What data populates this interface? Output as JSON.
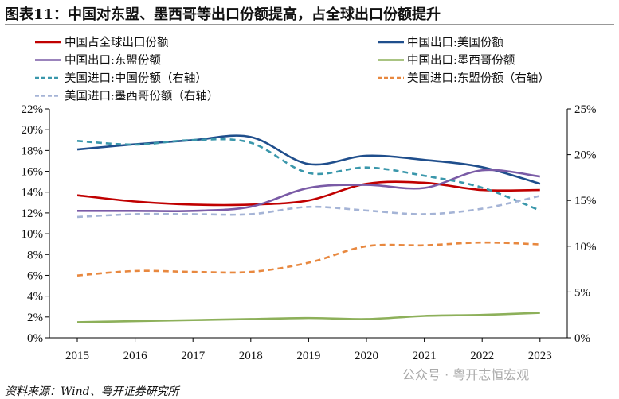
{
  "title": "图表11：中国对东盟、墨西哥等出口份额提高，占全球出口份额提升",
  "source": "资料来源：Wind、粤开证券研究所",
  "watermark": "公众号 · 粤开志恒宏观",
  "chart_data": {
    "type": "line",
    "x": [
      "2015",
      "2016",
      "2017",
      "2018",
      "2019",
      "2020",
      "2021",
      "2022",
      "2023"
    ],
    "left_axis": {
      "ylim": [
        0,
        22
      ],
      "ticks": [
        "0%",
        "2%",
        "4%",
        "6%",
        "8%",
        "10%",
        "12%",
        "14%",
        "16%",
        "18%",
        "20%",
        "22%"
      ]
    },
    "right_axis": {
      "ylim": [
        0,
        25
      ],
      "ticks": [
        "0%",
        "5%",
        "10%",
        "15%",
        "20%",
        "25%"
      ]
    },
    "legend_position": "top",
    "grid": false,
    "series": [
      {
        "name": "中国占全球出口份额",
        "axis": "left",
        "color": "#c00000",
        "dash": false,
        "values": [
          13.7,
          13.1,
          12.8,
          12.8,
          13.2,
          14.8,
          14.9,
          14.2,
          14.2
        ]
      },
      {
        "name": "中国出口:美国份额",
        "axis": "left",
        "color": "#1f4e8c",
        "dash": false,
        "values": [
          18.1,
          18.6,
          19.0,
          19.3,
          16.7,
          17.5,
          17.1,
          16.4,
          14.8
        ]
      },
      {
        "name": "中国出口:东盟份额",
        "axis": "left",
        "color": "#7a5ba6",
        "dash": false,
        "values": [
          12.2,
          12.2,
          12.2,
          12.6,
          14.4,
          14.7,
          14.4,
          16.1,
          15.5
        ]
      },
      {
        "name": "中国出口:墨西哥份额",
        "axis": "left",
        "color": "#8db05a",
        "dash": false,
        "values": [
          1.5,
          1.6,
          1.7,
          1.8,
          1.9,
          1.8,
          2.1,
          2.2,
          2.4
        ]
      },
      {
        "name": "美国进口:中国份额（右轴）",
        "axis": "right",
        "color": "#3a97ab",
        "dash": true,
        "values": [
          21.5,
          21.1,
          21.6,
          21.3,
          18.0,
          18.6,
          17.7,
          16.4,
          13.9
        ]
      },
      {
        "name": "美国进口:东盟份额（右轴）",
        "axis": "right",
        "color": "#e8883f",
        "dash": true,
        "values": [
          6.8,
          7.3,
          7.2,
          7.2,
          8.2,
          10.0,
          10.1,
          10.4,
          10.2
        ]
      },
      {
        "name": "美国进口:墨西哥份额（右轴）",
        "axis": "right",
        "color": "#a5b4d6",
        "dash": true,
        "values": [
          13.2,
          13.5,
          13.5,
          13.5,
          14.3,
          13.9,
          13.5,
          14.1,
          15.5
        ]
      }
    ]
  }
}
